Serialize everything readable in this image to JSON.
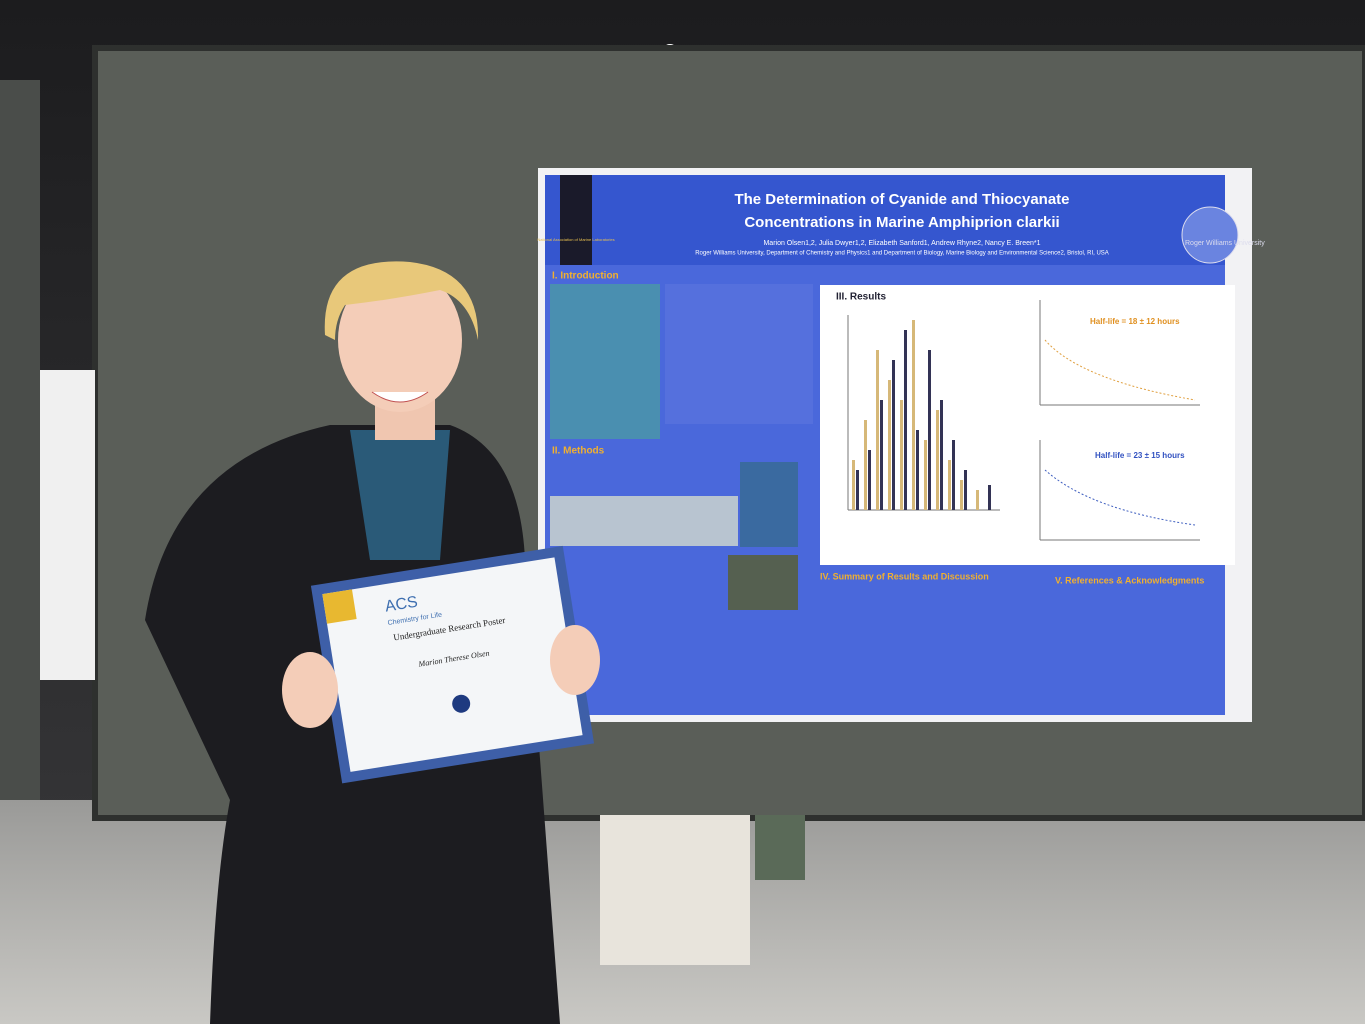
{
  "poster": {
    "logo": "National Association of Marine Laboratories",
    "title_line1": "The Determination of Cyanide and Thiocyanate",
    "title_line2": "Concentrations in Marine Amphiprion clarkii",
    "authors": "Marion Olsen1,2, Julia Dwyer1,2, Elizabeth Sanford1, Andrew Rhyne2, Nancy E. Breen*1",
    "affiliation": "Roger Williams University, Department of Chemistry and Physics1 and Department of Biology, Marine Biology and Environmental Science2, Bristol, RI, USA",
    "university": "Roger Williams University",
    "sections": [
      "I. Introduction",
      "II. Methods",
      "III. Results",
      "IV. Summary of Results and Discussion",
      "V. References & Acknowledgments"
    ],
    "half_life_1": "Half-life = 18 ± 12 hours",
    "half_life_2": "Half-life = 23 ± 15 hours"
  },
  "certificate": {
    "brand": "ACS",
    "tagline": "Chemistry for Life",
    "award": "Undergraduate Research Poster",
    "recipient": "Marion Therese Olsen"
  }
}
